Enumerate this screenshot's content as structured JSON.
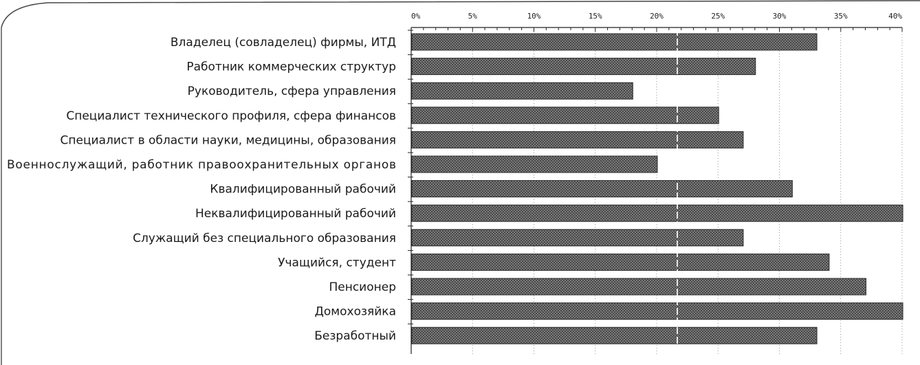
{
  "chart_data": {
    "type": "bar",
    "orientation": "horizontal",
    "categories": [
      "Владелец (совладелец) фирмы, ИТД",
      "Работник коммерческих структур",
      "Руководитель, сфера управления",
      "Специалист технического профиля, сфера финансов",
      "Специалист в области науки, медицины, образования",
      "Военнослужащий, работник правоохранительных органов",
      "Квалифицированный рабочий",
      "Неквалифицированный рабочий",
      "Служащий без специального образования",
      "Учащийся, студент",
      "Пенсионер",
      "Домохозяйка",
      "Безработный"
    ],
    "values": [
      33,
      28,
      18,
      25,
      27,
      20,
      31,
      40,
      27,
      34,
      37,
      40,
      33
    ],
    "xlim": [
      0,
      40
    ],
    "ticks": [
      "0%",
      "5%",
      "10%",
      "15%",
      "20%",
      "25%",
      "30%",
      "35%",
      "40%"
    ],
    "tick_values": [
      0,
      5,
      10,
      15,
      20,
      25,
      30,
      35,
      40
    ],
    "axis_position": "top",
    "grid": "vertical-dotted",
    "bar_color": "#6e6e6e"
  }
}
